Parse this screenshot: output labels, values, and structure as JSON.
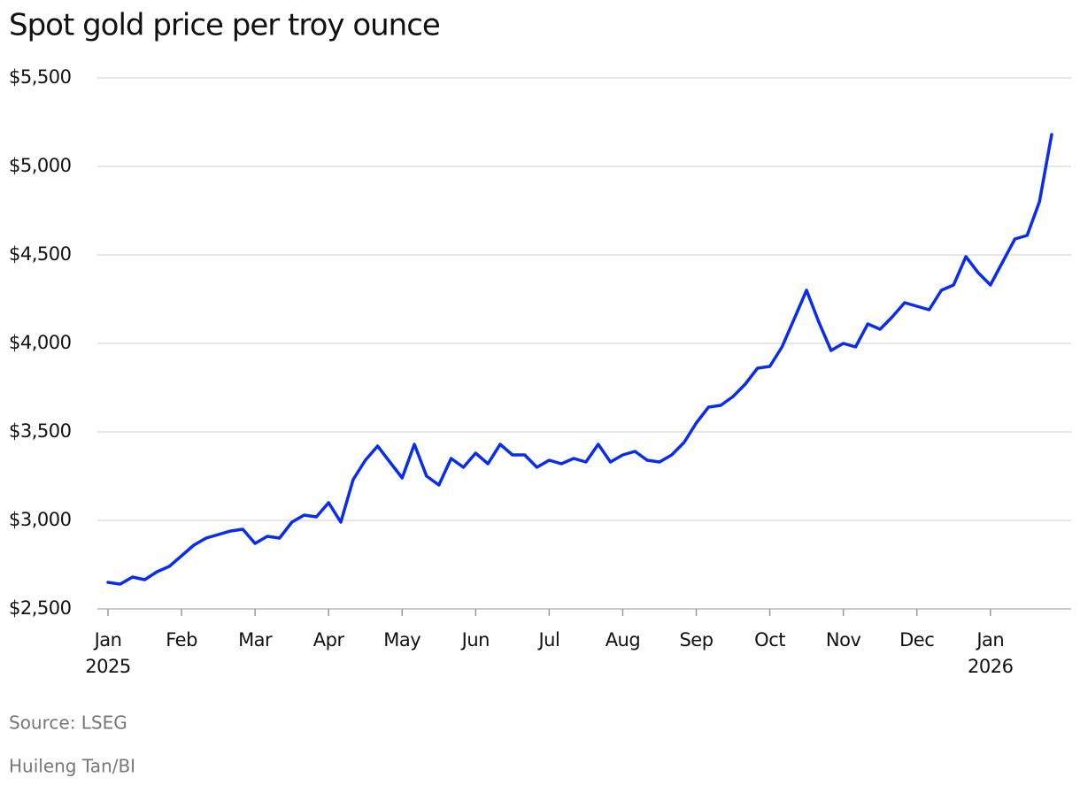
{
  "chart_data": {
    "type": "line",
    "title": "Spot gold price per troy ounce",
    "source": "Source: LSEG",
    "credit": "Huileng Tan/BI",
    "categories": [
      "Jan 2025",
      null,
      null,
      null,
      null,
      null,
      "Feb",
      null,
      null,
      null,
      null,
      null,
      "Mar",
      null,
      null,
      null,
      null,
      null,
      "Apr",
      null,
      null,
      null,
      null,
      null,
      "May",
      null,
      null,
      null,
      null,
      null,
      "Jun",
      null,
      null,
      null,
      null,
      null,
      "Jul",
      null,
      null,
      null,
      null,
      null,
      "Aug",
      null,
      null,
      null,
      null,
      null,
      "Sep",
      null,
      null,
      null,
      null,
      null,
      "Oct",
      null,
      null,
      null,
      null,
      null,
      "Nov",
      null,
      null,
      null,
      null,
      null,
      "Dec",
      null,
      null,
      null,
      null,
      null,
      "Jan 2026",
      null,
      null,
      null,
      null,
      null
    ],
    "series": [
      {
        "name": "Spot gold",
        "color": "#0a2cf0",
        "values": [
          2650,
          2640,
          2680,
          2665,
          2710,
          2740,
          2800,
          2860,
          2900,
          2920,
          2940,
          2950,
          2870,
          2910,
          2900,
          2990,
          3030,
          3020,
          3100,
          2990,
          3230,
          3340,
          3420,
          3330,
          3240,
          3430,
          3250,
          3200,
          3350,
          3300,
          3380,
          3320,
          3430,
          3370,
          3370,
          3300,
          3340,
          3320,
          3350,
          3330,
          3430,
          3330,
          3370,
          3390,
          3340,
          3330,
          3370,
          3440,
          3550,
          3640,
          3650,
          3700,
          3770,
          3860,
          3870,
          3980,
          4140,
          4300,
          4120,
          3960,
          4000,
          3980,
          4110,
          4080,
          4150,
          4230,
          4210,
          4190,
          4300,
          4330,
          4490,
          4400,
          4330,
          4460,
          4590,
          4610,
          4800,
          5180
        ]
      }
    ],
    "ylim": [
      2500,
      5500
    ],
    "yticks": [
      {
        "value": 2500,
        "label": "$2,500"
      },
      {
        "value": 3000,
        "label": "$3,000"
      },
      {
        "value": 3500,
        "label": "$3,500"
      },
      {
        "value": 4000,
        "label": "$4,000"
      },
      {
        "value": 4500,
        "label": "$4,500"
      },
      {
        "value": 5000,
        "label": "$5,000"
      },
      {
        "value": 5500,
        "label": "$5,500"
      }
    ],
    "grid": true
  }
}
